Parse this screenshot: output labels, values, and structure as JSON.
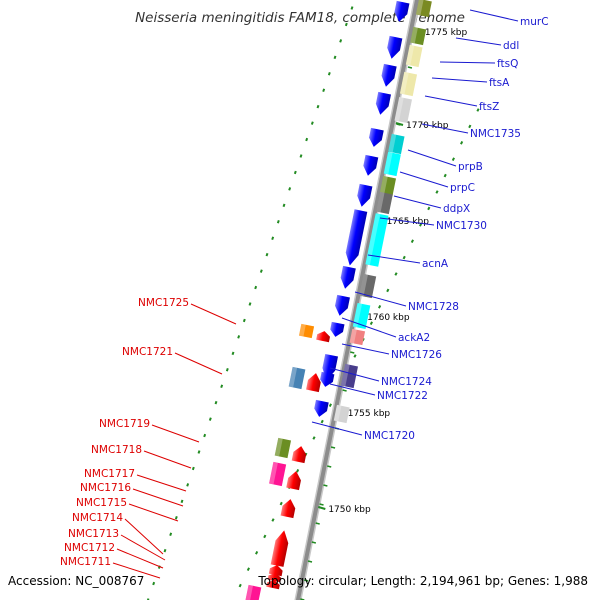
{
  "title": "Neisseria meningitidis FAM18, complete genome",
  "footer": {
    "accession": "Accession: NC_008767",
    "topology": "Topology: circular; Length: 2,194,961 bp; Genes: 1,988"
  },
  "ticks": [
    {
      "label": "1775 kbp"
    },
    {
      "label": "1770 kbp"
    },
    {
      "label": "1765 kbp"
    },
    {
      "label": "1760 kbp"
    },
    {
      "label": "1755 kbp"
    },
    {
      "label": "1750 kbp"
    }
  ],
  "genes_right": [
    {
      "label": "murC",
      "color": "#1a1ad0"
    },
    {
      "label": "ddl",
      "color": "#1a1ad0"
    },
    {
      "label": "ftsQ",
      "color": "#1a1ad0"
    },
    {
      "label": "ftsA",
      "color": "#1a1ad0"
    },
    {
      "label": "ftsZ",
      "color": "#1a1ad0"
    },
    {
      "label": "NMC1735",
      "color": "#1a1ad0"
    },
    {
      "label": "prpB",
      "color": "#1a1ad0"
    },
    {
      "label": "prpC",
      "color": "#1a1ad0"
    },
    {
      "label": "ddpX",
      "color": "#1a1ad0"
    },
    {
      "label": "NMC1730",
      "color": "#1a1ad0"
    },
    {
      "label": "acnA",
      "color": "#1a1ad0"
    },
    {
      "label": "NMC1728",
      "color": "#1a1ad0"
    },
    {
      "label": "ackA2",
      "color": "#1a1ad0"
    },
    {
      "label": "NMC1726",
      "color": "#1a1ad0"
    },
    {
      "label": "NMC1724",
      "color": "#1a1ad0"
    },
    {
      "label": "NMC1722",
      "color": "#1a1ad0"
    },
    {
      "label": "NMC1720",
      "color": "#1a1ad0"
    }
  ],
  "genes_left": [
    {
      "label": "NMC1725",
      "color": "#dd0000"
    },
    {
      "label": "NMC1721",
      "color": "#dd0000"
    },
    {
      "label": "NMC1719",
      "color": "#dd0000"
    },
    {
      "label": "NMC1718",
      "color": "#dd0000"
    },
    {
      "label": "NMC1717",
      "color": "#dd0000"
    },
    {
      "label": "NMC1716",
      "color": "#dd0000"
    },
    {
      "label": "NMC1715",
      "color": "#dd0000"
    },
    {
      "label": "NMC1714",
      "color": "#dd0000"
    },
    {
      "label": "NMC1713",
      "color": "#dd0000"
    },
    {
      "label": "NMC1712",
      "color": "#dd0000"
    },
    {
      "label": "NMC1711",
      "color": "#dd0000"
    }
  ],
  "colors": {
    "backbone": "#8c8c8c",
    "forward_strand": "#0000ff",
    "reverse_strand": "#ff0000",
    "tick": "#228b22"
  }
}
